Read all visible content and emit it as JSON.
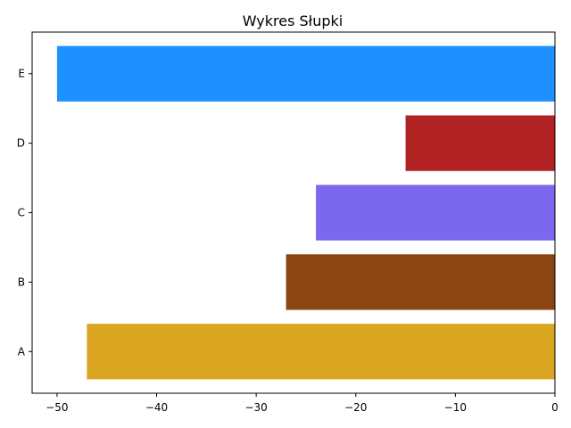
{
  "chart_data": {
    "type": "bar",
    "orientation": "horizontal",
    "title": "Wykres Słupki",
    "xlabel": "",
    "ylabel": "",
    "categories": [
      "A",
      "B",
      "C",
      "D",
      "E"
    ],
    "values": [
      -47,
      -27,
      -24,
      -15,
      -50
    ],
    "colors": [
      "#DAA520",
      "#8B4513",
      "#7B68EE",
      "#B22222",
      "#1E90FF"
    ],
    "xlim": [
      -52.5,
      0
    ],
    "xticks": [
      -50,
      -40,
      -30,
      -20,
      -10,
      0
    ],
    "xtick_labels": [
      "−50",
      "−40",
      "−30",
      "−20",
      "−10",
      "0"
    ],
    "grid": false,
    "legend": "none"
  }
}
